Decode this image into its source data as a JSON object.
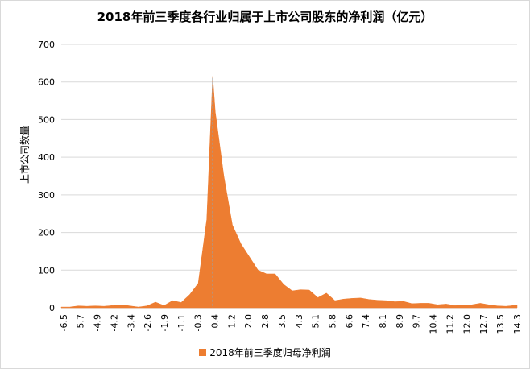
{
  "chart_data": {
    "type": "area",
    "title": "2018年前三季度各行业归属于上市公司股东的净利润（亿元）",
    "ylabel": "上市公司数量",
    "xlabel": "",
    "ylim": [
      0,
      700
    ],
    "yticks": [
      0,
      100,
      200,
      300,
      400,
      500,
      600,
      700
    ],
    "x_tick_labels": [
      "-6.5",
      "-5.7",
      "-4.9",
      "-4.2",
      "-3.4",
      "-2.6",
      "-1.9",
      "-1.1",
      "-0.3",
      "0.4",
      "1.2",
      "2.0",
      "2.8",
      "3.5",
      "4.3",
      "5.1",
      "5.8",
      "6.6",
      "7.4",
      "8.1",
      "8.9",
      "9.7",
      "10.4",
      "11.2",
      "12.0",
      "12.7",
      "13.5",
      "14.3"
    ],
    "x_range": [
      -6.5,
      14.3
    ],
    "x": [
      -6.5,
      -6.11,
      -5.72,
      -5.33,
      -4.94,
      -4.55,
      -4.16,
      -3.76,
      -3.37,
      -2.98,
      -2.59,
      -2.2,
      -1.81,
      -1.42,
      -1.03,
      -0.64,
      -0.25,
      0.14,
      0.41,
      0.53,
      0.92,
      1.31,
      1.7,
      2.09,
      2.48,
      2.87,
      3.26,
      3.65,
      4.04,
      4.43,
      4.82,
      5.21,
      5.6,
      5.99,
      6.38,
      6.77,
      7.16,
      7.55,
      7.94,
      8.33,
      8.72,
      9.11,
      9.5,
      9.89,
      10.28,
      10.67,
      11.06,
      11.45,
      11.84,
      12.23,
      12.62,
      13.01,
      13.4,
      13.79,
      14.3
    ],
    "series": [
      {
        "name": "2018年前三季度归母净利润",
        "color": "#ED7D31",
        "values": [
          2,
          2,
          5,
          4,
          5,
          4,
          6,
          8,
          5,
          2,
          5,
          15,
          6,
          19,
          14,
          35,
          65,
          235,
          615,
          520,
          350,
          220,
          170,
          135,
          100,
          90,
          90,
          62,
          45,
          48,
          47,
          27,
          39,
          19,
          23,
          25,
          26,
          22,
          20,
          19,
          16,
          17,
          11,
          12,
          12,
          8,
          10,
          6,
          8,
          8,
          12,
          8,
          5,
          4,
          7
        ]
      }
    ],
    "vline_x": 0.41,
    "legend_position": "bottom",
    "grid": true,
    "legend_label": "2018年前三季度归母净利润"
  }
}
